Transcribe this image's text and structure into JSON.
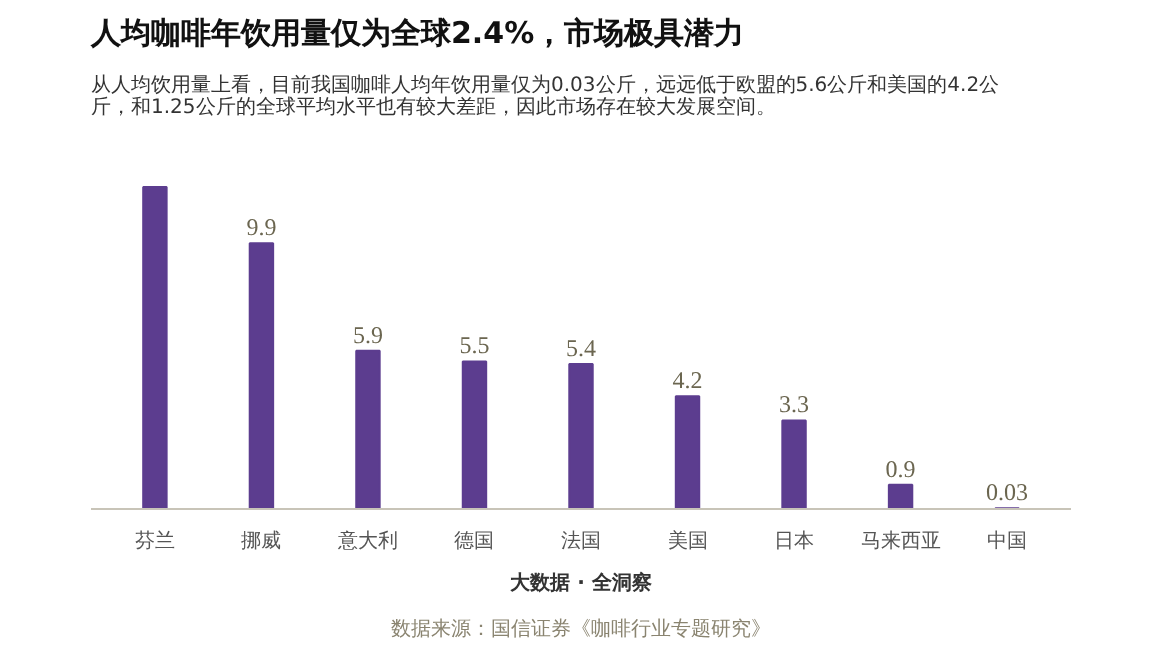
{
  "chart_data": {
    "type": "bar",
    "title": "人均咖啡年饮用量仅为全球2.4%，市场极具潜力",
    "subtitle": "从人均饮用量上看，目前我国咖啡人均年饮用量仅为0.03公斤，远远低于欧盟的5.6公斤和美国的4.2公斤，和1.25公斤的全球平均水平也有较大差距，因此市场存在较大发展空间。",
    "categories": [
      "芬兰",
      "挪威",
      "意大利",
      "德国",
      "法国",
      "美国",
      "日本",
      "马来西亚",
      "中国"
    ],
    "values": [
      12,
      9.9,
      5.9,
      5.5,
      5.4,
      4.2,
      3.3,
      0.9,
      0.03
    ],
    "value_labels": [
      null,
      "9.9",
      "5.9",
      "5.5",
      "5.4",
      "4.2",
      "3.3",
      "0.9",
      "0.03"
    ],
    "color": "#5c3d8f",
    "annotations": [
      "数据来源：国信证券《咖啡行业专题研究》",
      "大数据 · 全洞察"
    ]
  }
}
